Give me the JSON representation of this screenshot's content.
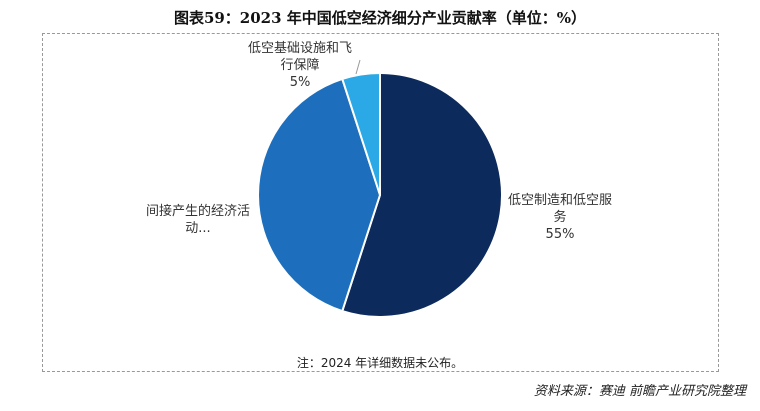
{
  "chart_data": {
    "type": "pie",
    "title": "图表59：2023 年中国低空经济细分产业贡献率（单位：%）",
    "categories": [
      "低空制造和低空服务",
      "间接产生的经济活动...",
      "低空基础设施和飞行保障"
    ],
    "values": [
      55,
      40,
      5
    ],
    "value_labels": [
      "55%",
      null,
      "5%"
    ],
    "colors": [
      "#0c2a5c",
      "#1d6fbe",
      "#2aa9e6"
    ],
    "note": "注：2024 年详细数据未公布。",
    "source": "资料来源：赛迪 前瞻产业研究院整理"
  }
}
